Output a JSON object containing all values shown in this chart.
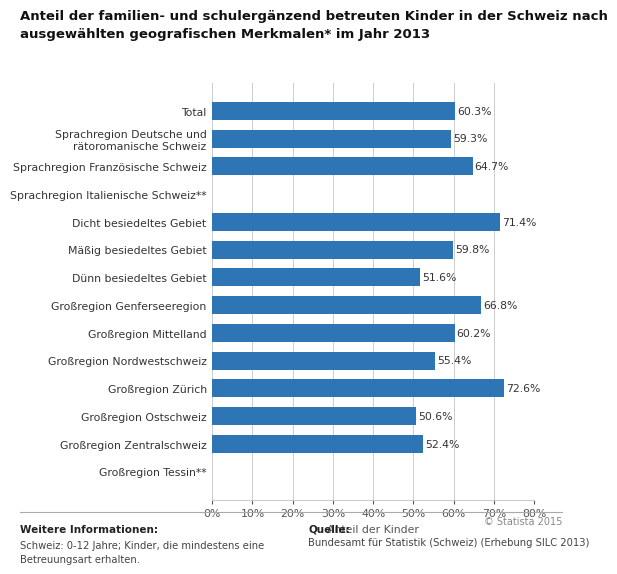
{
  "title_line1": "Anteil der familien- und schulergänzend betreuten Kinder in der Schweiz nach",
  "title_line2": "ausgewählten geografischen Merkmalen* im Jahr 2013",
  "categories": [
    "Total",
    "Sprachregion Deutsche und\nrätoromanische Schweiz",
    "Sprachregion Französische Schweiz",
    "Sprachregion Italienische Schweiz**",
    "Dicht besiedeltes Gebiet",
    "Mäßig besiedeltes Gebiet",
    "Dünn besiedeltes Gebiet",
    "Großregion Genferseeregion",
    "Großregion Mittelland",
    "Großregion Nordwestschweiz",
    "Großregion Zürich",
    "Großregion Ostschweiz",
    "Großregion Zentralschweiz",
    "Großregion Tessin**"
  ],
  "values": [
    60.3,
    59.3,
    64.7,
    0,
    71.4,
    59.8,
    51.6,
    66.8,
    60.2,
    55.4,
    72.6,
    50.6,
    52.4,
    0
  ],
  "bar_color": "#2e75b6",
  "xlabel": "Anteil der Kinder",
  "xlim": [
    0,
    80
  ],
  "xticks": [
    0,
    10,
    20,
    30,
    40,
    50,
    60,
    70,
    80
  ],
  "xtick_labels": [
    "0%",
    "10%",
    "20%",
    "30%",
    "40%",
    "50%",
    "60%",
    "70%",
    "80%"
  ],
  "title_fontsize": 9.5,
  "label_fontsize": 7.8,
  "value_fontsize": 7.8,
  "xlabel_fontsize": 7.8,
  "footer_left_bold": "Weitere Informationen:",
  "footer_left": "Schweiz: 0-12 Jahre; Kinder, die mindestens eine\nBetreuungsart erhalten.",
  "footer_right_bold": "Quelle:",
  "footer_right": "Bundesamt für Statistik (Schweiz) (Erhebung SILC 2013)",
  "footer_statista": "© Statista 2015",
  "background_color": "#ffffff",
  "grid_color": "#cccccc"
}
